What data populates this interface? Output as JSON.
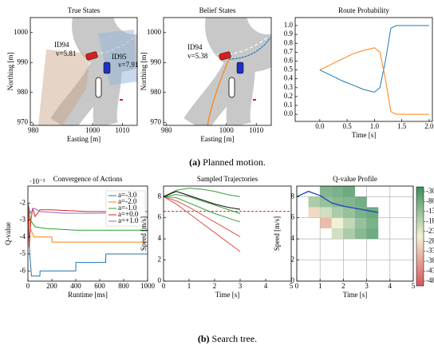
{
  "chart_data": [
    {
      "type": "map",
      "title": "True States",
      "xlabel": "Easting [m]",
      "ylabel": "Northing [m]",
      "xlim": [
        979,
        1015
      ],
      "ylim": [
        969,
        1005
      ],
      "xticks": [
        980,
        1000,
        1010
      ],
      "yticks": [
        970,
        980,
        990,
        1000
      ],
      "annotations": [
        "ID94",
        "v=5.81",
        "ID95",
        "v=7.91"
      ]
    },
    {
      "type": "map",
      "title": "Belief States",
      "xlabel": "Easting [m]",
      "ylabel": "Northing [m]",
      "xlim": [
        979,
        1015
      ],
      "ylim": [
        969,
        1005
      ],
      "xticks": [
        980,
        1000,
        1010
      ],
      "yticks": [
        970,
        980,
        990,
        1000
      ],
      "annotations": [
        "ID94",
        "v=5.38"
      ]
    },
    {
      "type": "line",
      "title": "Route Probability",
      "xlabel": "Time [s]",
      "xlim": [
        -0.45,
        2.06
      ],
      "ylim": [
        -0.08,
        1.09
      ],
      "xticks": [
        {
          "value": 0,
          "label": "0.0"
        },
        {
          "value": 0.5,
          "label": "0.5"
        },
        {
          "value": 1,
          "label": "1.0"
        },
        {
          "value": 1.5,
          "label": "1.5"
        },
        {
          "value": 2,
          "label": "2.0"
        }
      ],
      "yticks": [
        {
          "value": 0,
          "label": "0.0"
        },
        {
          "value": 0.1,
          "label": "0.1"
        },
        {
          "value": 0.2,
          "label": "0.2"
        },
        {
          "value": 0.3,
          "label": "0.3"
        },
        {
          "value": 0.4,
          "label": "0.4"
        },
        {
          "value": 0.5,
          "label": "0.5"
        },
        {
          "value": 0.6,
          "label": "0.6"
        },
        {
          "value": 0.7,
          "label": "0.7"
        },
        {
          "value": 0.8,
          "label": "0.8"
        },
        {
          "value": 0.9,
          "label": "0.9"
        },
        {
          "value": 1,
          "label": "1.0"
        }
      ],
      "x": [
        0,
        0.2,
        0.4,
        0.6,
        0.8,
        1.0,
        1.1,
        1.2,
        1.3,
        1.4,
        1.6,
        1.8,
        2.0
      ],
      "series": [
        {
          "color": "#1f77b4",
          "values": [
            0.5,
            0.44,
            0.38,
            0.33,
            0.28,
            0.25,
            0.3,
            0.6,
            0.97,
            1.0,
            1.0,
            1.0,
            1.0
          ]
        },
        {
          "color": "#ff7f0e",
          "values": [
            0.5,
            0.56,
            0.62,
            0.68,
            0.72,
            0.75,
            0.7,
            0.4,
            0.03,
            0.0,
            0.0,
            0.0,
            0.0
          ]
        }
      ]
    },
    {
      "type": "line",
      "title": "Convergence of Actions",
      "xlabel": "Runtime [ms]",
      "ylabel": "Q-value",
      "offset_label": "·10⁻³",
      "xlim": [
        0,
        1000
      ],
      "ylim": [
        -6.6,
        -1.0
      ],
      "xticks": [
        0,
        200,
        400,
        600,
        800,
        1000
      ],
      "yticks": [
        -6,
        -5,
        -4,
        -3,
        -2
      ],
      "legend": "upper right",
      "series": [
        {
          "name": "a=-3.0",
          "color": "#1f77b4",
          "x": [
            0,
            15,
            30,
            100,
            101,
            400,
            401,
            650,
            651,
            1000
          ],
          "values": [
            -2,
            -5,
            -6.3,
            -6.3,
            -6.0,
            -6.0,
            -5.5,
            -5.5,
            -5.0,
            -5.0
          ]
        },
        {
          "name": "a=-2.0",
          "color": "#ff7f0e",
          "x": [
            0,
            20,
            50,
            200,
            201,
            1000
          ],
          "values": [
            -2,
            -3.5,
            -4.0,
            -4.0,
            -4.3,
            -4.3
          ]
        },
        {
          "name": "a=-1.0",
          "color": "#2ca02c",
          "x": [
            0,
            20,
            60,
            150,
            400,
            1000
          ],
          "values": [
            -2,
            -3.0,
            -3.4,
            -3.5,
            -3.6,
            -3.6
          ]
        },
        {
          "name": "a=+0.0",
          "color": "#d62728",
          "x": [
            0,
            10,
            25,
            40,
            60,
            100,
            200,
            500,
            1000
          ],
          "values": [
            -2,
            -4.6,
            -3.0,
            -2.3,
            -2.8,
            -2.4,
            -2.4,
            -2.5,
            -2.5
          ]
        },
        {
          "name": "a=+1.0",
          "color": "#9467bd",
          "x": [
            0,
            20,
            50,
            100,
            300,
            600,
            1000
          ],
          "values": [
            -2,
            -2.6,
            -2.3,
            -2.5,
            -2.6,
            -2.6,
            -2.5
          ]
        }
      ]
    },
    {
      "type": "line",
      "title": "Sampled Trajectories",
      "xlabel": "Time [s]",
      "ylabel": "Speed [m/s]",
      "xlim": [
        0,
        5
      ],
      "ylim": [
        0,
        9
      ],
      "xticks": [
        0,
        1,
        2,
        3,
        4,
        5
      ],
      "yticks": [
        0,
        2,
        4,
        6,
        8
      ],
      "x": [
        0,
        0.5,
        1,
        1.5,
        2,
        2.5,
        3
      ],
      "series": [
        {
          "color": "#3c9a3c",
          "values": [
            8,
            8.6,
            8.8,
            8.7,
            8.5,
            8.2,
            8.0
          ]
        },
        {
          "color": "#3c9a3c",
          "values": [
            8,
            8.2,
            8.0,
            7.6,
            7.2,
            6.8,
            6.4
          ]
        },
        {
          "color": "#3c9a3c",
          "values": [
            8,
            7.9,
            7.4,
            6.9,
            6.4,
            6.0,
            5.6
          ]
        },
        {
          "color": "#d9534f",
          "values": [
            8,
            7.6,
            7.0,
            6.3,
            5.6,
            4.9,
            4.2
          ]
        },
        {
          "color": "#d9534f",
          "values": [
            8,
            7.3,
            6.4,
            5.5,
            4.6,
            3.7,
            2.8
          ]
        },
        {
          "color": "#000000",
          "values": [
            8,
            8.5,
            8.1,
            7.7,
            7.3,
            7.0,
            6.8
          ]
        }
      ],
      "reference_speed": 6.6,
      "reference_color": "#cc0000"
    },
    {
      "type": "heatmap",
      "title": "Q-value Profile",
      "xlabel": "Time [s]",
      "ylabel": "Speed [m/s]",
      "xlim": [
        0,
        5
      ],
      "ylim": [
        0,
        9
      ],
      "xticks": [
        0,
        1,
        2,
        3,
        4,
        5
      ],
      "yticks": [
        0,
        2,
        4,
        6,
        8
      ],
      "grid": true,
      "heatmap": {
        "x": [
          0.75,
          1.25,
          1.75,
          2.25,
          2.75,
          3.25
        ],
        "y": [
          4.5,
          5.5,
          6.5,
          7.5,
          8.5
        ],
        "z": [
          [
            null,
            null,
            -200,
            -150,
            -100,
            -60
          ],
          [
            null,
            -350,
            -250,
            -180,
            -120,
            -80
          ],
          [
            -300,
            -200,
            -150,
            -120,
            -80,
            -60
          ],
          [
            -150,
            -120,
            -100,
            -90,
            -70,
            null
          ],
          [
            null,
            -90,
            -80,
            -60,
            null,
            null
          ]
        ]
      },
      "line": {
        "color": "#1f3fbf",
        "x": [
          0,
          0.5,
          1,
          1.5,
          2,
          2.5,
          3,
          3.5
        ],
        "values": [
          8,
          8.5,
          8.1,
          7.4,
          7.1,
          6.9,
          6.7,
          6.5
        ]
      },
      "colorbar": {
        "clim": [
          -30,
          -480
        ],
        "ticks": [
          -30,
          -80,
          -130,
          -180,
          -230,
          -280,
          -330,
          -380,
          -430,
          -480
        ]
      }
    }
  ],
  "captions": [
    {
      "label": "(a)",
      "text": "Planned motion."
    },
    {
      "label": "(b)",
      "text": "Search tree."
    }
  ]
}
